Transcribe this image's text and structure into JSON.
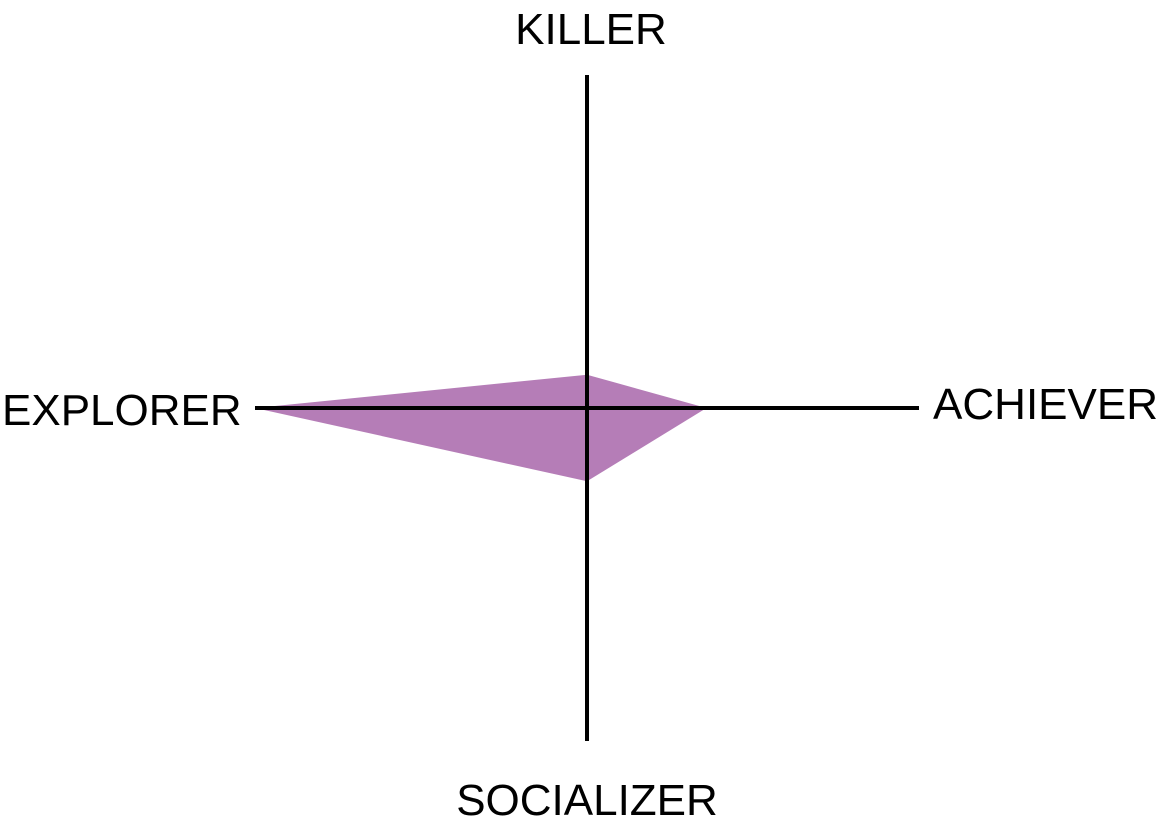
{
  "chart_data": {
    "type": "radar",
    "axes": [
      {
        "name": "KILLER"
      },
      {
        "name": "ACHIEVER"
      },
      {
        "name": "SOCIALIZER"
      },
      {
        "name": "EXPLORER"
      }
    ],
    "range": [
      0,
      100
    ],
    "series": [
      {
        "values": [
          10,
          36,
          22,
          100
        ],
        "color": "#b57db7"
      }
    ],
    "axis_color": "#000000"
  }
}
